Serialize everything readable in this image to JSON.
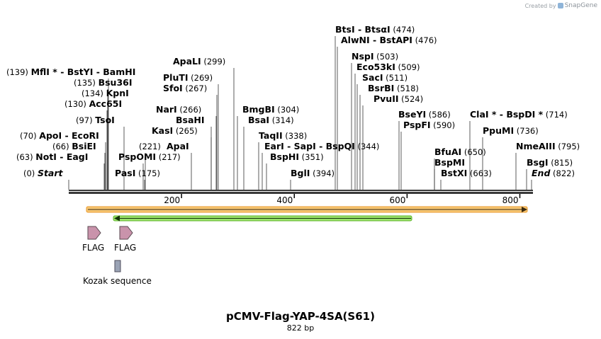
{
  "watermark": {
    "prefix": "Created by",
    "brand": "SnapGene"
  },
  "map": {
    "title": "pCMV-Flag-YAP-4SA(S61)",
    "length_label": "822 bp",
    "length_bp": 822,
    "ticks": [
      {
        "bp": 200,
        "label": "200"
      },
      {
        "bp": 400,
        "label": "400"
      },
      {
        "bp": 600,
        "label": "600"
      },
      {
        "bp": 800,
        "label": "800"
      }
    ]
  },
  "sites": [
    {
      "id": "mfli",
      "pos": "(139)",
      "text": "MflI * - BstYI - BamHI",
      "bp": 139,
      "side": "right"
    },
    {
      "id": "bsu36i",
      "pos": "(135)",
      "text": "Bsu36I",
      "bp": 135,
      "side": "right"
    },
    {
      "id": "kpni",
      "pos": "(134)",
      "text": "KpnI",
      "bp": 134,
      "side": "right"
    },
    {
      "id": "acc65i",
      "pos": "(130)",
      "text": "Acc65I",
      "bp": 130,
      "side": "right"
    },
    {
      "id": "tsoi",
      "pos": "(97)",
      "text": "TsoI",
      "bp": 97,
      "side": "right"
    },
    {
      "id": "apoi",
      "pos": "(70)",
      "text": "ApoI - EcoRI",
      "bp": 70,
      "side": "right"
    },
    {
      "id": "bsiei",
      "pos": "(66)",
      "text": "BsiEI",
      "bp": 66,
      "side": "right"
    },
    {
      "id": "noti",
      "pos": "(63)",
      "text": "NotI - EagI",
      "bp": 63,
      "side": "right"
    },
    {
      "id": "start",
      "pos": "(0)",
      "text": "Start",
      "bp": 0,
      "side": "right",
      "italic": true
    },
    {
      "id": "pasi",
      "pos": "(175)",
      "text": "PasI",
      "bp": 175,
      "side": "left"
    },
    {
      "id": "pspomi",
      "pos": "(217)",
      "text": "PspOMI",
      "bp": 217,
      "side": "left"
    },
    {
      "id": "bsmbi_221",
      "pos": "(221)",
      "text": "",
      "bp": 221,
      "side": "left"
    },
    {
      "id": "apai",
      "pos": "",
      "text": "ApaI",
      "bp": 221,
      "side": "right"
    },
    {
      "id": "kasi",
      "pos": "(265)",
      "text": "KasI",
      "bp": 265,
      "side": "left"
    },
    {
      "id": "bsahi",
      "pos": "",
      "text": "BsaHI",
      "bp": 265,
      "side": "right"
    },
    {
      "id": "nari",
      "pos": "(266)",
      "text": "NarI",
      "bp": 266,
      "side": "left"
    },
    {
      "id": "sfoi",
      "pos": "(267)",
      "text": "SfoI",
      "bp": 267,
      "side": "left"
    },
    {
      "id": "pluti",
      "pos": "(269)",
      "text": "PluTI",
      "bp": 269,
      "side": "left"
    },
    {
      "id": "apali",
      "pos": "(299)",
      "text": "ApaLI",
      "bp": 299,
      "side": "left"
    },
    {
      "id": "bmgbi",
      "pos": "(304)",
      "text": "BmgBI",
      "bp": 304,
      "side": "left"
    },
    {
      "id": "bsai",
      "pos": "(314)",
      "text": "BsaI",
      "bp": 314,
      "side": "left"
    },
    {
      "id": "taqii",
      "pos": "(338)",
      "text": "TaqII",
      "bp": 338,
      "side": "left"
    },
    {
      "id": "eari",
      "pos": "(344)",
      "text": "EarI - SapI - BspQI",
      "bp": 344,
      "side": "left"
    },
    {
      "id": "bsphi",
      "pos": "(351)",
      "text": "BspHI",
      "bp": 351,
      "side": "left"
    },
    {
      "id": "bgli",
      "pos": "(394)",
      "text": "BglI",
      "bp": 394,
      "side": "left"
    },
    {
      "id": "btsi",
      "pos": "(474)",
      "text": "BtsI - BtsαI",
      "bp": 474,
      "side": "left"
    },
    {
      "id": "alwni",
      "pos": "(476)",
      "text": "AlwNI - BstAPI",
      "bp": 476,
      "side": "left"
    },
    {
      "id": "nspi",
      "pos": "(503)",
      "text": "NspI",
      "bp": 503,
      "side": "left"
    },
    {
      "id": "eco53ki",
      "pos": "(509)",
      "text": "Eco53kI",
      "bp": 509,
      "side": "left"
    },
    {
      "id": "saci",
      "pos": "(511)",
      "text": "SacI",
      "bp": 511,
      "side": "left"
    },
    {
      "id": "bsrbi",
      "pos": "(518)",
      "text": "BsrBI",
      "bp": 518,
      "side": "left"
    },
    {
      "id": "pvuii",
      "pos": "(524)",
      "text": "PvuII",
      "bp": 524,
      "side": "left"
    },
    {
      "id": "bseyi",
      "pos": "(586)",
      "text": "BseYI",
      "bp": 586,
      "side": "left"
    },
    {
      "id": "pspfi",
      "pos": "(590)",
      "text": "PspFI",
      "bp": 590,
      "side": "left"
    },
    {
      "id": "clai",
      "pos": "(714)",
      "text": "ClaI * - BspDI *",
      "bp": 714,
      "side": "left"
    },
    {
      "id": "bfuai",
      "pos": "(650)",
      "text": "BfuAI",
      "bp": 650,
      "side": "left"
    },
    {
      "id": "bspmi",
      "pos": "",
      "text": "BspMI",
      "bp": 650,
      "side": "left"
    },
    {
      "id": "bstxi",
      "pos": "(663)",
      "text": "BstXI",
      "bp": 663,
      "side": "left"
    },
    {
      "id": "ppumi",
      "pos": "(736)",
      "text": "PpuMI",
      "bp": 736,
      "side": "left"
    },
    {
      "id": "nmeaiii",
      "pos": "(795)",
      "text": "NmeAIII",
      "bp": 795,
      "side": "left"
    },
    {
      "id": "bsgi",
      "pos": "(815)",
      "text": "BsgI",
      "bp": 815,
      "side": "left"
    },
    {
      "id": "end",
      "pos": "(822)",
      "text": "End",
      "bp": 822,
      "side": "left",
      "italic": true
    }
  ],
  "features": [
    {
      "id": "orange-bar",
      "label": "",
      "color": "#f5a623",
      "start_bp": 2,
      "end_bp": 820
    },
    {
      "id": "green-bar",
      "label": "",
      "color": "#7ed321",
      "start_bp": 70,
      "end_bp": 616
    },
    {
      "id": "flag1",
      "label": "FLAG",
      "color": "#cc8fa8"
    },
    {
      "id": "flag2",
      "label": "FLAG",
      "color": "#cc8fa8"
    },
    {
      "id": "kozak",
      "label": "Kozak sequence",
      "color": "#9aa3b5"
    }
  ]
}
